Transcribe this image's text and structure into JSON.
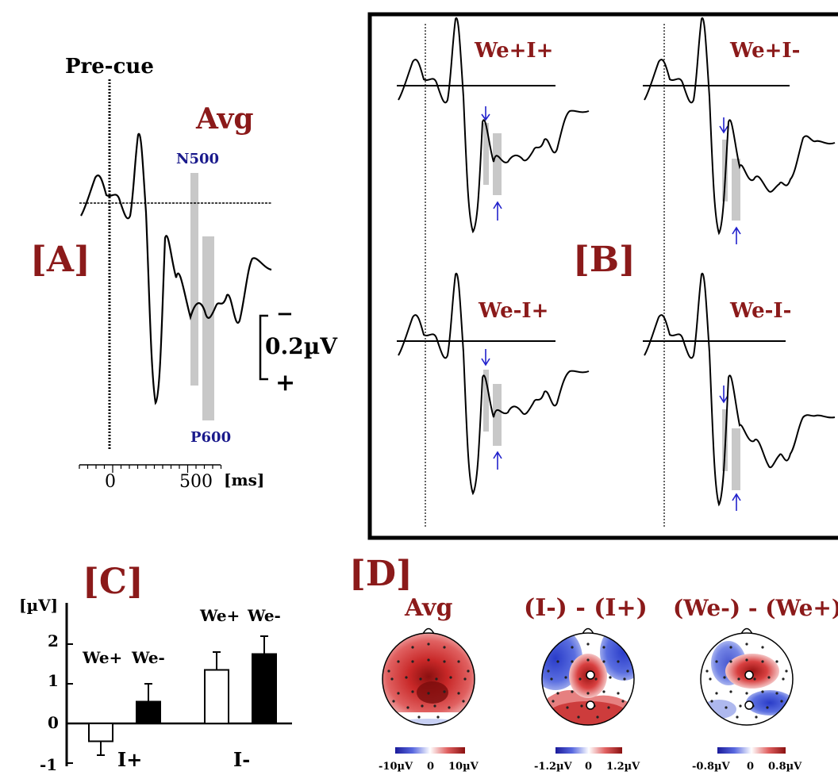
{
  "colors": {
    "panel_label": "#8b1a1a",
    "marker_label": "#1a1a8c",
    "arrow": "#2222cc",
    "window": "#c8c8c8",
    "trace": "#000000",
    "topo_pos": "#cc2222",
    "topo_neg": "#2244cc"
  },
  "panel_a": {
    "label": "[A]",
    "cue_label": "Pre-cue",
    "avg_label": "Avg",
    "n500_label": "N500",
    "p600_label": "P600",
    "scale_value": "0.2µV",
    "scale_minus": "−",
    "scale_plus": "+",
    "x_ticks": [
      "0",
      "500"
    ],
    "x_unit": "[ms]"
  },
  "panel_b": {
    "label": "[B]",
    "conditions": [
      "We+I+",
      "We+I-",
      "We-I+",
      "We-I-"
    ]
  },
  "panel_c": {
    "label": "[C]",
    "y_unit": "[µV]",
    "y_ticks": [
      "2",
      "1",
      "0",
      "-1"
    ],
    "group_labels": [
      "I+",
      "I-"
    ],
    "bar_labels": [
      "We+",
      "We-",
      "We+",
      "We-"
    ]
  },
  "panel_d": {
    "label": "[D]",
    "maps": [
      {
        "title": "Avg",
        "scale_min": "-10µV",
        "scale_mid": "0",
        "scale_max": "10µV"
      },
      {
        "title": "(I-) - (I+)",
        "scale_min": "-1.2µV",
        "scale_mid": "0",
        "scale_max": "1.2µV"
      },
      {
        "title": "(We-) - (We+)",
        "scale_min": "-0.8µV",
        "scale_mid": "0",
        "scale_max": "0.8µV"
      }
    ]
  },
  "chart_data": {
    "type": "bar",
    "categories": [
      "I+ We+",
      "I+ We-",
      "I- We+",
      "I- We-"
    ],
    "values": [
      -0.45,
      0.55,
      1.35,
      1.75
    ],
    "errors": [
      0.35,
      0.45,
      0.45,
      0.45
    ],
    "fills": [
      "white",
      "black",
      "white",
      "black"
    ],
    "ylabel": "[µV]",
    "ylim": [
      -1,
      2.5
    ]
  }
}
